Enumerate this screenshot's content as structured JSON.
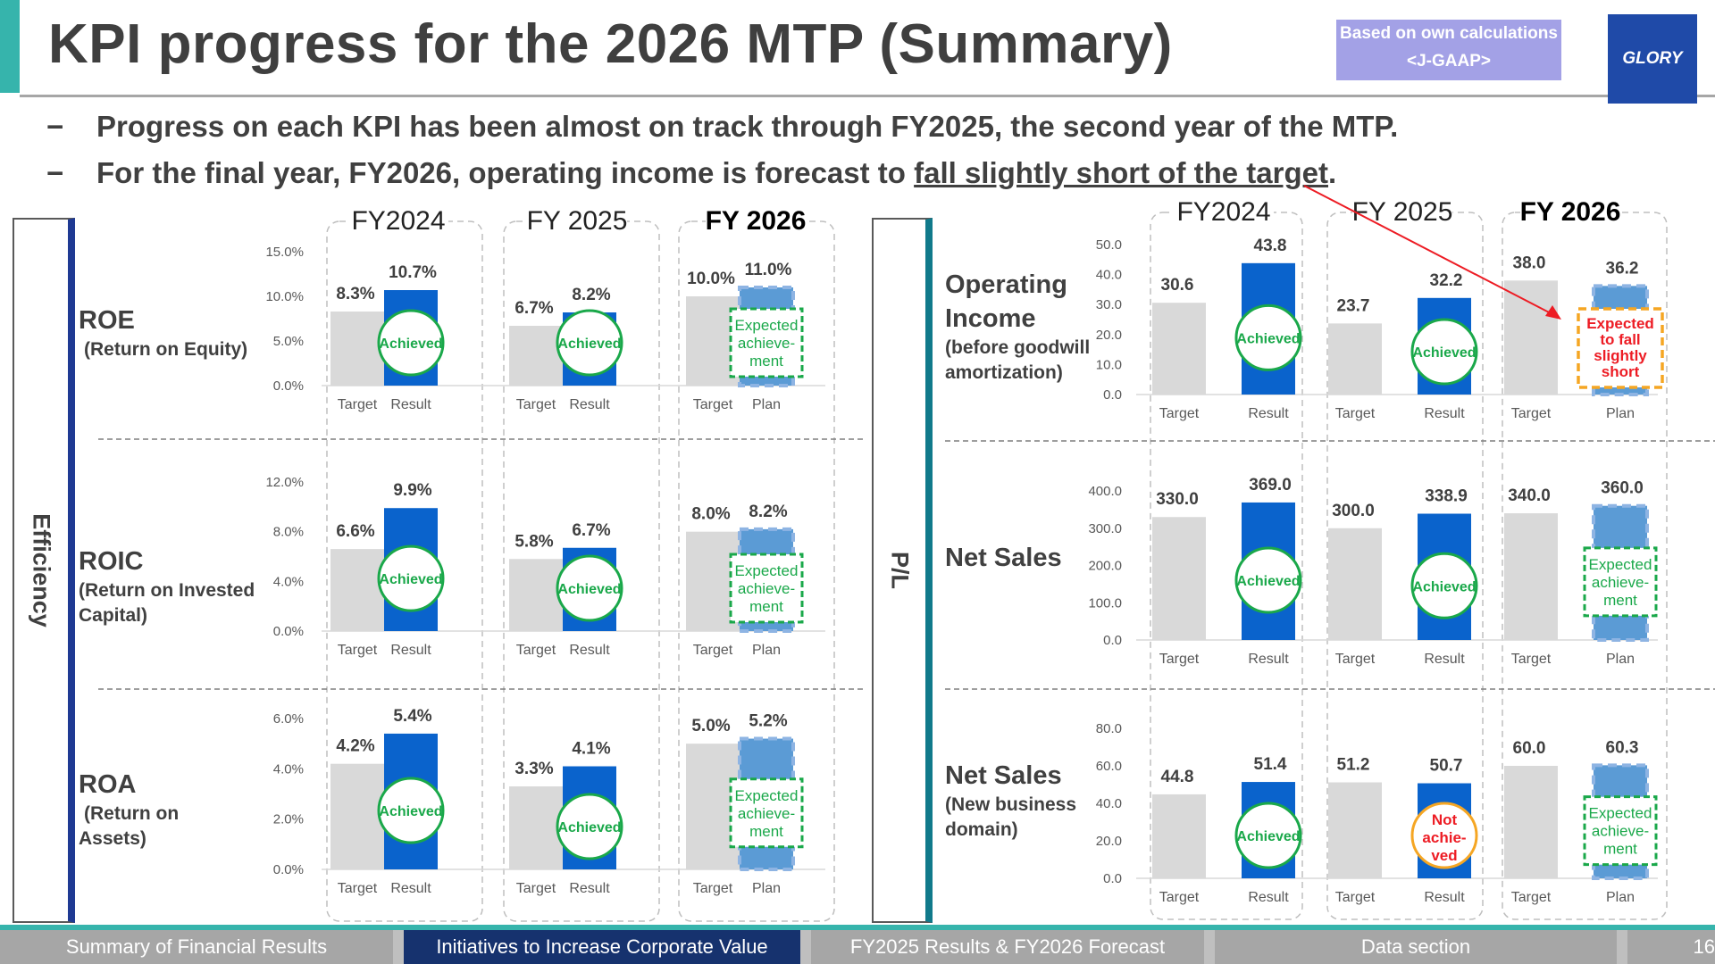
{
  "header": {
    "title": "KPI progress for the 2026 MTP (Summary)",
    "badge_line1": "Based on own calculations",
    "badge_line2": "<J-GAAP>",
    "logo": "GLORY"
  },
  "bullets": [
    {
      "dash": "−",
      "text": "Progress on each KPI has been almost on track through FY2025, the second year of the MTP.",
      "underlined": ""
    },
    {
      "dash": "−",
      "text": "For the final year, FY2026, operating income is forecast to ",
      "underlined": "fall slightly short of the target",
      "end": "."
    }
  ],
  "sections": {
    "left": "Efficiency",
    "right": "P/L"
  },
  "years": [
    "FY2024",
    "FY 2025",
    "FY 2026"
  ],
  "years_right": [
    "FY2024",
    "FY 2025",
    "FY 2026"
  ],
  "badges": {
    "achieved": "Achieved",
    "expected": [
      "Expected",
      "achieve-",
      "ment"
    ],
    "not_achieved": [
      "Not",
      "achie-",
      "ved"
    ],
    "short": [
      "Expected",
      "to fall",
      "slightly",
      "short"
    ]
  },
  "kpis": [
    {
      "name": "ROE",
      "sub": [
        "(Return on Equity)"
      ]
    },
    {
      "name": "ROIC",
      "sub": [
        "(Return on Invested",
        "Capital)"
      ]
    },
    {
      "name": "ROA",
      "sub": [
        "(Return on",
        "Assets)"
      ]
    },
    {
      "name": [
        "Operating",
        "Income"
      ],
      "sub": [
        "(before goodwill",
        "amortization)"
      ]
    },
    {
      "name": "Net Sales",
      "sub": []
    },
    {
      "name": "Net Sales",
      "sub": [
        "(New business",
        "domain)"
      ]
    }
  ],
  "chart_data": [
    {
      "type": "bar",
      "name": "ROE",
      "categories": [
        "Target",
        "Result",
        "Target",
        "Result",
        "Target",
        "Plan"
      ],
      "values": [
        8.3,
        10.7,
        6.7,
        8.2,
        10.0,
        11.0
      ],
      "labels": [
        "8.3%",
        "10.7%",
        "6.7%",
        "8.2%",
        "10.0%",
        "11.0%"
      ],
      "ylim": [
        0,
        15
      ],
      "yticks": [
        "0.0%",
        "5.0%",
        "10.0%",
        "15.0%"
      ],
      "status": [
        "achieved",
        "achieved",
        "expected"
      ]
    },
    {
      "type": "bar",
      "name": "ROIC",
      "categories": [
        "Target",
        "Result",
        "Target",
        "Result",
        "Target",
        "Plan"
      ],
      "values": [
        6.6,
        9.9,
        5.8,
        6.7,
        8.0,
        8.2
      ],
      "labels": [
        "6.6%",
        "9.9%",
        "5.8%",
        "6.7%",
        "8.0%",
        "8.2%"
      ],
      "ylim": [
        0,
        12
      ],
      "yticks": [
        "0.0%",
        "4.0%",
        "8.0%",
        "12.0%"
      ],
      "status": [
        "achieved",
        "achieved",
        "expected"
      ]
    },
    {
      "type": "bar",
      "name": "ROA",
      "categories": [
        "Target",
        "Result",
        "Target",
        "Result",
        "Target",
        "Plan"
      ],
      "values": [
        4.2,
        5.4,
        3.3,
        4.1,
        5.0,
        5.2
      ],
      "labels": [
        "4.2%",
        "5.4%",
        "3.3%",
        "4.1%",
        "5.0%",
        "5.2%"
      ],
      "ylim": [
        0,
        6
      ],
      "yticks": [
        "0.0%",
        "2.0%",
        "4.0%",
        "6.0%"
      ],
      "status": [
        "achieved",
        "achieved",
        "expected"
      ]
    },
    {
      "type": "bar",
      "name": "Operating Income",
      "categories": [
        "Target",
        "Result",
        "Target",
        "Result",
        "Target",
        "Plan"
      ],
      "values": [
        30.6,
        43.8,
        23.7,
        32.2,
        38.0,
        36.2
      ],
      "labels": [
        "30.6",
        "43.8",
        "23.7",
        "32.2",
        "38.0",
        "36.2"
      ],
      "ylim": [
        0,
        50
      ],
      "yticks": [
        "0.0",
        "10.0",
        "20.0",
        "30.0",
        "40.0",
        "50.0"
      ],
      "status": [
        "achieved",
        "achieved",
        "short"
      ]
    },
    {
      "type": "bar",
      "name": "Net Sales",
      "categories": [
        "Target",
        "Result",
        "Target",
        "Result",
        "Target",
        "Plan"
      ],
      "values": [
        330.0,
        369.0,
        300.0,
        338.9,
        340.0,
        360.0
      ],
      "labels": [
        "330.0",
        "369.0",
        "300.0",
        "338.9",
        "340.0",
        "360.0"
      ],
      "ylim": [
        0,
        400
      ],
      "yticks": [
        "0.0",
        "100.0",
        "200.0",
        "300.0",
        "400.0"
      ],
      "status": [
        "achieved",
        "achieved",
        "expected"
      ]
    },
    {
      "type": "bar",
      "name": "Net Sales (New business domain)",
      "categories": [
        "Target",
        "Result",
        "Target",
        "Result",
        "Target",
        "Plan"
      ],
      "values": [
        44.8,
        51.4,
        51.2,
        50.7,
        60.0,
        60.3
      ],
      "labels": [
        "44.8",
        "51.4",
        "51.2",
        "50.7",
        "60.0",
        "60.3"
      ],
      "ylim": [
        0,
        80
      ],
      "yticks": [
        "0.0",
        "20.0",
        "40.0",
        "60.0",
        "80.0"
      ],
      "status": [
        "achieved",
        "not_achieved",
        "expected"
      ]
    }
  ],
  "colors": {
    "target": "#d9d9d9",
    "result": "#0a63cc",
    "plan": "#5b9bd5",
    "achieved": "#1aa84a",
    "not_achieved": "#ed1c24",
    "short_border": "#f5a623",
    "arrow": "#ed1c24"
  },
  "nav": {
    "items": [
      "Summary of Financial Results",
      "Initiatives to Increase Corporate Value",
      "FY2025 Results & FY2026 Forecast",
      "Data section"
    ],
    "active_index": 1,
    "page": "16"
  }
}
